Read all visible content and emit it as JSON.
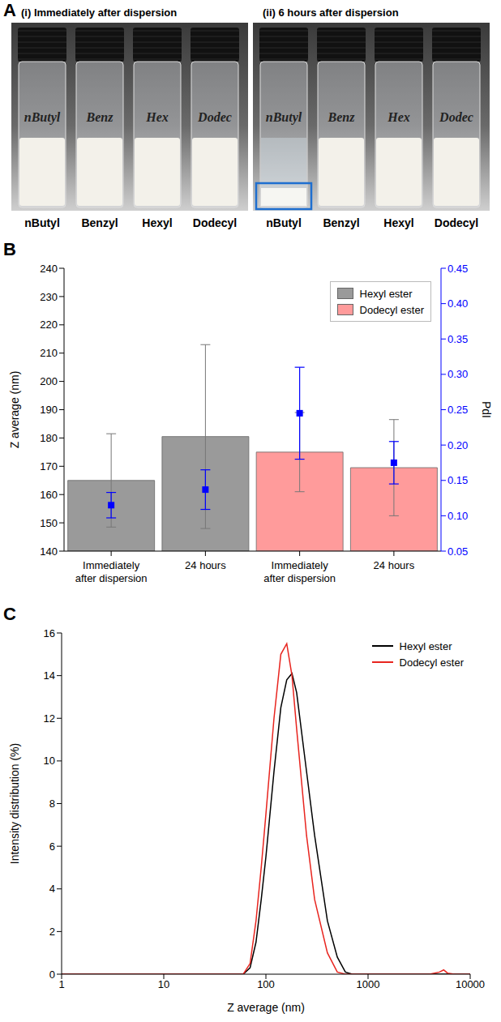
{
  "panel_A": {
    "letter": "A",
    "images": [
      {
        "title": "(i) Immediately after dispersion",
        "vials": [
          "nButyl",
          "Benzyl",
          "Hexyl",
          "Dodecyl"
        ],
        "vial_labels": [
          "nButyl",
          "Benz",
          "Hex",
          "Dodec"
        ],
        "settled": []
      },
      {
        "title": "(ii) 6 hours after dispersion",
        "vials": [
          "nButyl",
          "Benzyl",
          "Hexyl",
          "Dodecyl"
        ],
        "vial_labels": [
          "nButyl",
          "Benz",
          "Hex",
          "Dodec"
        ],
        "settled": [
          "nButyl"
        ]
      }
    ]
  },
  "chart_data": [
    {
      "panel": "B",
      "type": "bar",
      "categories": [
        "Immediately after dispersion",
        "24 hours",
        "Immediately after dispersion",
        "24 hours"
      ],
      "y_label": "Z average (nm)",
      "y2_label": "PdI",
      "ylim": [
        140,
        240
      ],
      "yticks": [
        140,
        150,
        160,
        170,
        180,
        190,
        200,
        210,
        220,
        230,
        240
      ],
      "y2lim": [
        0.05,
        0.45
      ],
      "y2ticks": [
        0.05,
        {
          "value": 0.1,
          "label": "0.10"
        },
        0.15,
        {
          "value": 0.2,
          "label": "0.20"
        },
        0.25,
        {
          "value": 0.3,
          "label": "0.30"
        },
        0.35,
        {
          "value": 0.4,
          "label": "0.40"
        },
        0.45
      ],
      "grid": false,
      "legend": "upper right",
      "series": [
        {
          "name": "Hexyl ester",
          "color": "#9a9a9a",
          "values": [
            165,
            180.5,
            null,
            null
          ],
          "error": [
            16.5,
            32.5,
            null,
            null
          ]
        },
        {
          "name": "Dodecyl ester",
          "color": "#ff9b9b",
          "values": [
            null,
            null,
            175,
            169.5
          ],
          "error": [
            null,
            null,
            14,
            17
          ]
        },
        {
          "type": "scatter",
          "axis": "y2",
          "marker": "square",
          "color": "#0000ff",
          "values": [
            0.115,
            0.137,
            0.245,
            0.175
          ],
          "error": [
            0.018,
            0.028,
            0.065,
            0.03
          ]
        }
      ]
    },
    {
      "panel": "C",
      "type": "line",
      "x_label": "Z average (nm)",
      "y_label": "Intensity distribution (%)",
      "log": "x",
      "xlim": [
        1,
        10000
      ],
      "xticks": [
        1,
        10,
        100,
        1000,
        10000
      ],
      "ylim": [
        0,
        16
      ],
      "yticks": [
        0,
        2,
        4,
        6,
        8,
        10,
        12,
        14,
        16
      ],
      "grid": false,
      "legend": "upper right",
      "x": [
        1,
        10,
        50,
        60,
        70,
        80,
        90,
        100,
        120,
        140,
        160,
        180,
        200,
        250,
        300,
        400,
        500,
        600,
        700,
        1000,
        4000,
        5000,
        5500,
        6000,
        7000,
        10000
      ],
      "series": [
        {
          "name": "Hexyl ester",
          "color": "#000000",
          "values": [
            0,
            0,
            0,
            0,
            0.3,
            1.5,
            3.5,
            5.5,
            9.5,
            12.5,
            13.8,
            14.1,
            13.2,
            9.5,
            6.5,
            2.5,
            0.8,
            0.1,
            0,
            0,
            0,
            0,
            0,
            0,
            0,
            0
          ]
        },
        {
          "name": "Dodecyl ester",
          "color": "#e8251f",
          "values": [
            0,
            0,
            0,
            0,
            0.5,
            2.5,
            5,
            7.5,
            12,
            15,
            15.5,
            14,
            11.5,
            6.5,
            3.5,
            1,
            0.1,
            0,
            0,
            0,
            0,
            0.1,
            0.2,
            0.05,
            0,
            0
          ]
        }
      ]
    }
  ]
}
